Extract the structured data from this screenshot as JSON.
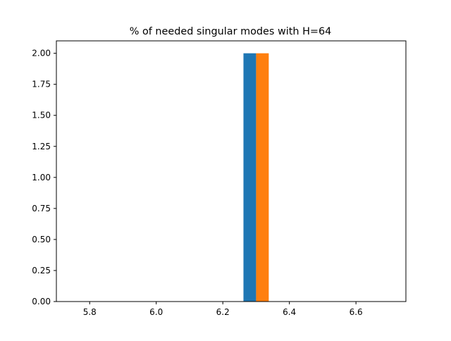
{
  "chart_data": {
    "type": "bar",
    "title": "% of needed singular modes with H=64",
    "xlabel": "",
    "ylabel": "",
    "xlim": [
      5.7,
      6.75
    ],
    "ylim": [
      0,
      2.1
    ],
    "xticks": [
      5.8,
      6.0,
      6.2,
      6.4,
      6.6
    ],
    "xtick_labels": [
      "5.8",
      "6.0",
      "6.2",
      "6.4",
      "6.6"
    ],
    "yticks": [
      0,
      0.25,
      0.5,
      0.75,
      1.0,
      1.25,
      1.5,
      1.75,
      2.0
    ],
    "ytick_labels": [
      "0.00",
      "0.25",
      "0.50",
      "0.75",
      "1.00",
      "1.25",
      "1.50",
      "1.75",
      "2.00"
    ],
    "grid": false,
    "series": [
      {
        "color": "#1f77b4",
        "bins": [
          {
            "x0": 6.262,
            "x1": 6.3,
            "value": 2
          }
        ]
      },
      {
        "color": "#ff7f0e",
        "bins": [
          {
            "x0": 6.3,
            "x1": 6.338,
            "value": 2
          }
        ]
      }
    ]
  }
}
